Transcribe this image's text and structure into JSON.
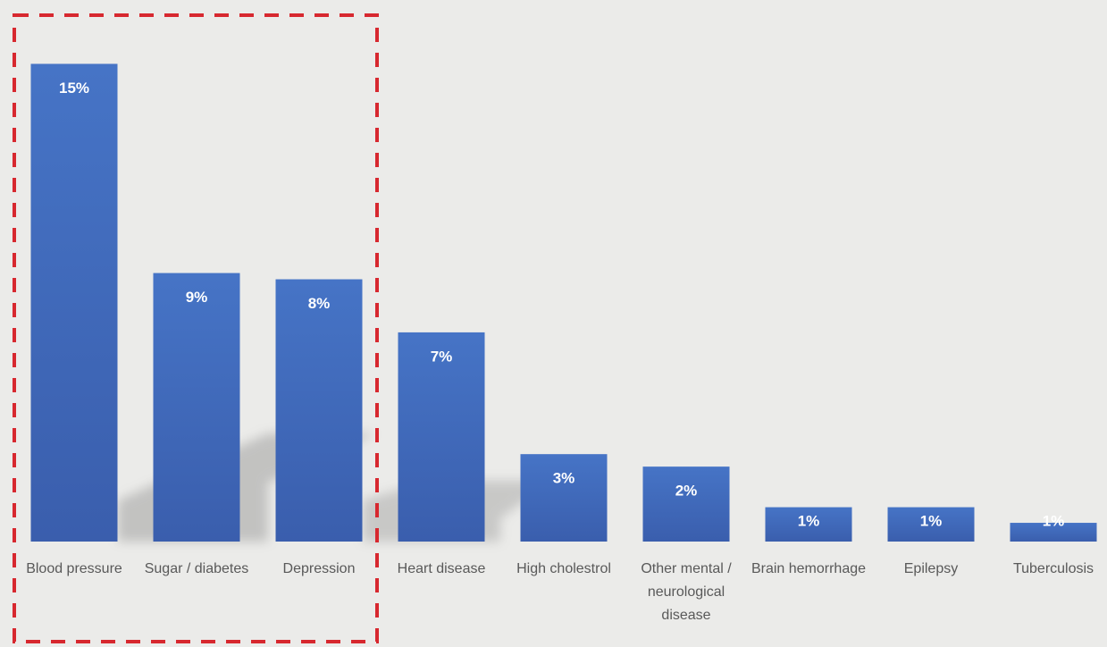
{
  "chart_data": {
    "type": "bar",
    "categories": [
      "Blood pressure",
      "Sugar / diabetes",
      "Depression",
      "Heart disease",
      "High cholestrol",
      "Other mental / neurological disease",
      "Brain hemorrhage",
      "Epilepsy",
      "Tuberculosis"
    ],
    "values": [
      15.3,
      8.6,
      8.4,
      6.7,
      2.8,
      2.4,
      1.1,
      1.1,
      0.6
    ],
    "value_labels": [
      "15%",
      "9%",
      "8%",
      "7%",
      "3%",
      "2%",
      "1%",
      "1%",
      "1%"
    ],
    "color": "#4472c4",
    "ylim": [
      0,
      16
    ]
  }
}
